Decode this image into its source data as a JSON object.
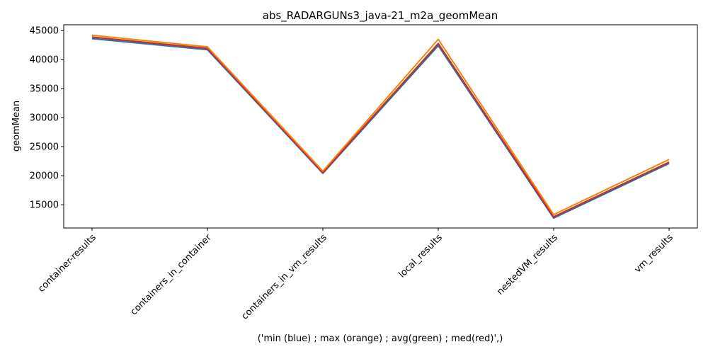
{
  "chart_data": {
    "type": "line",
    "title": "abs_RADARGUNs3_java-21_m2a_geomMean",
    "xlabel": "('min (blue) ; max (orange) ; avg(green) ; med(red)',)",
    "ylabel": "geomMean",
    "categories": [
      "container-results",
      "containers_in_container",
      "containers_in_vm_results",
      "local_results",
      "nestedVM_results",
      "vm_results"
    ],
    "ylim": [
      11000,
      46000
    ],
    "yticks": [
      15000,
      20000,
      25000,
      30000,
      35000,
      40000,
      45000
    ],
    "grid": false,
    "series": [
      {
        "name": "min",
        "color": "#1f77b4",
        "values": [
          43600,
          41700,
          20400,
          42400,
          12700,
          22100
        ]
      },
      {
        "name": "avg",
        "color": "#2ca02c",
        "values": [
          43900,
          41950,
          20600,
          42800,
          12950,
          22350
        ]
      },
      {
        "name": "med",
        "color": "#d62728",
        "values": [
          43850,
          41900,
          20550,
          42700,
          12900,
          22300
        ]
      },
      {
        "name": "max",
        "color": "#ff7f0e",
        "values": [
          44200,
          42200,
          20800,
          43500,
          13300,
          22800
        ]
      }
    ]
  }
}
